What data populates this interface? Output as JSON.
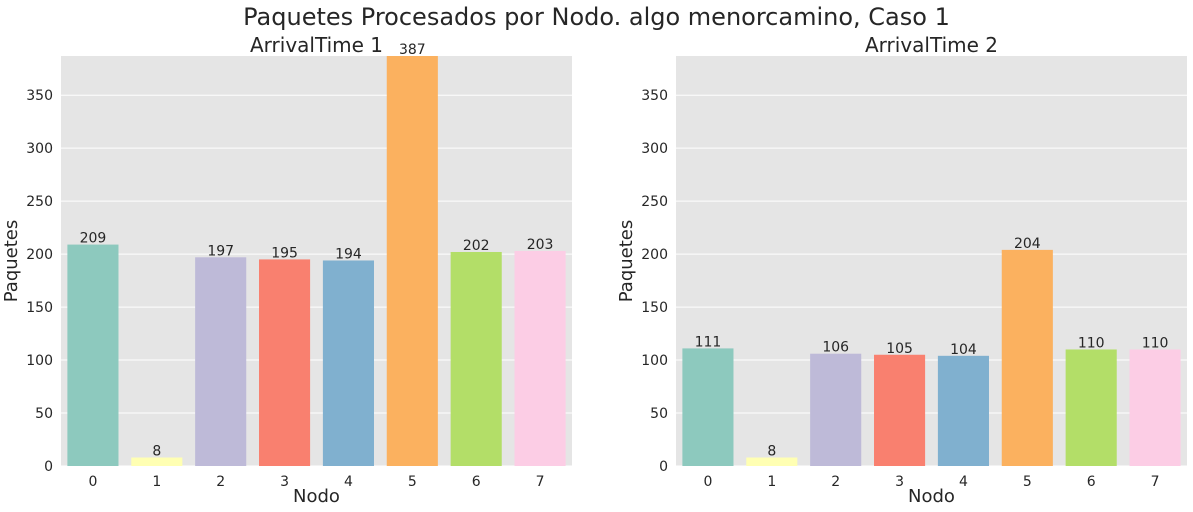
{
  "figure": {
    "suptitle": "Paquetes Procesados por Nodo. algo menorcamino, Caso 1"
  },
  "colors": {
    "background": "#e5e5e5",
    "grid": "#ffffff",
    "text": "#262626",
    "bars": [
      "#8dc9be",
      "#ffffb3",
      "#bebad8",
      "#f9806f",
      "#80b0cf",
      "#fbb15f",
      "#b3de68",
      "#fccde5"
    ]
  },
  "chart_data": [
    {
      "type": "bar",
      "title": "ArrivalTime 1",
      "xlabel": "Nodo",
      "ylabel": "Paquetes",
      "categories": [
        "0",
        "1",
        "2",
        "3",
        "4",
        "5",
        "6",
        "7"
      ],
      "values": [
        209,
        8,
        197,
        195,
        194,
        387,
        202,
        203
      ],
      "ylim": [
        0,
        387
      ],
      "yticks": [
        0,
        50,
        100,
        150,
        200,
        250,
        300,
        350
      ],
      "grid": true,
      "data_labels": true
    },
    {
      "type": "bar",
      "title": "ArrivalTime 2",
      "xlabel": "Nodo",
      "ylabel": "Paquetes",
      "categories": [
        "0",
        "1",
        "2",
        "3",
        "4",
        "5",
        "6",
        "7"
      ],
      "values": [
        111,
        8,
        106,
        105,
        104,
        204,
        110,
        110
      ],
      "ylim": [
        0,
        387
      ],
      "yticks": [
        0,
        50,
        100,
        150,
        200,
        250,
        300,
        350
      ],
      "grid": true,
      "data_labels": true
    }
  ]
}
